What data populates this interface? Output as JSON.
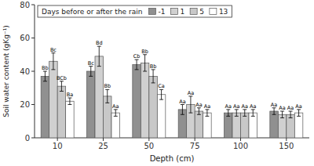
{
  "chart_data": {
    "type": "bar",
    "categories": [
      "10",
      "25",
      "50",
      "75",
      "100",
      "150"
    ],
    "series": [
      {
        "name": "-1",
        "color": "#909090",
        "values": [
          37,
          40,
          44,
          17,
          15,
          16
        ],
        "errors": [
          3,
          3,
          3,
          3,
          2,
          2
        ],
        "annotations": [
          "Bb",
          "Bc",
          "Cb",
          "Aa",
          "Aa",
          "Aa"
        ]
      },
      {
        "name": "1",
        "color": "#d0d0d0",
        "values": [
          46,
          49,
          45,
          20,
          15,
          14
        ],
        "errors": [
          5,
          6,
          5,
          5,
          2,
          2
        ],
        "annotations": [
          "Bc",
          "Bd",
          "Bb",
          "Aa",
          "Aa",
          "Aa"
        ]
      },
      {
        "name": "5",
        "color": "#c8c8c8",
        "values": [
          31,
          25,
          37,
          16,
          15,
          14
        ],
        "errors": [
          3,
          4,
          4,
          2,
          2,
          2
        ],
        "annotations": [
          "BCb",
          "Bb",
          "Bb",
          "Aa",
          "Aa",
          "Aa"
        ]
      },
      {
        "name": "13",
        "color": "#ffffff",
        "values": [
          22,
          15,
          26,
          15,
          15,
          15
        ],
        "errors": [
          2,
          2,
          3,
          2,
          2,
          2
        ],
        "annotations": [
          "Ba",
          "Aa",
          "Ca",
          "Aa",
          "Aa",
          "Aa"
        ]
      }
    ],
    "legend_title": "Days before or after the rain",
    "legend": "upper left",
    "xlabel": "Depth (cm)",
    "ylabel": "Soil water content (gKg⁻¹)",
    "ylim": [
      0,
      80
    ],
    "yticks": [
      0,
      20,
      40,
      60,
      80
    ]
  }
}
